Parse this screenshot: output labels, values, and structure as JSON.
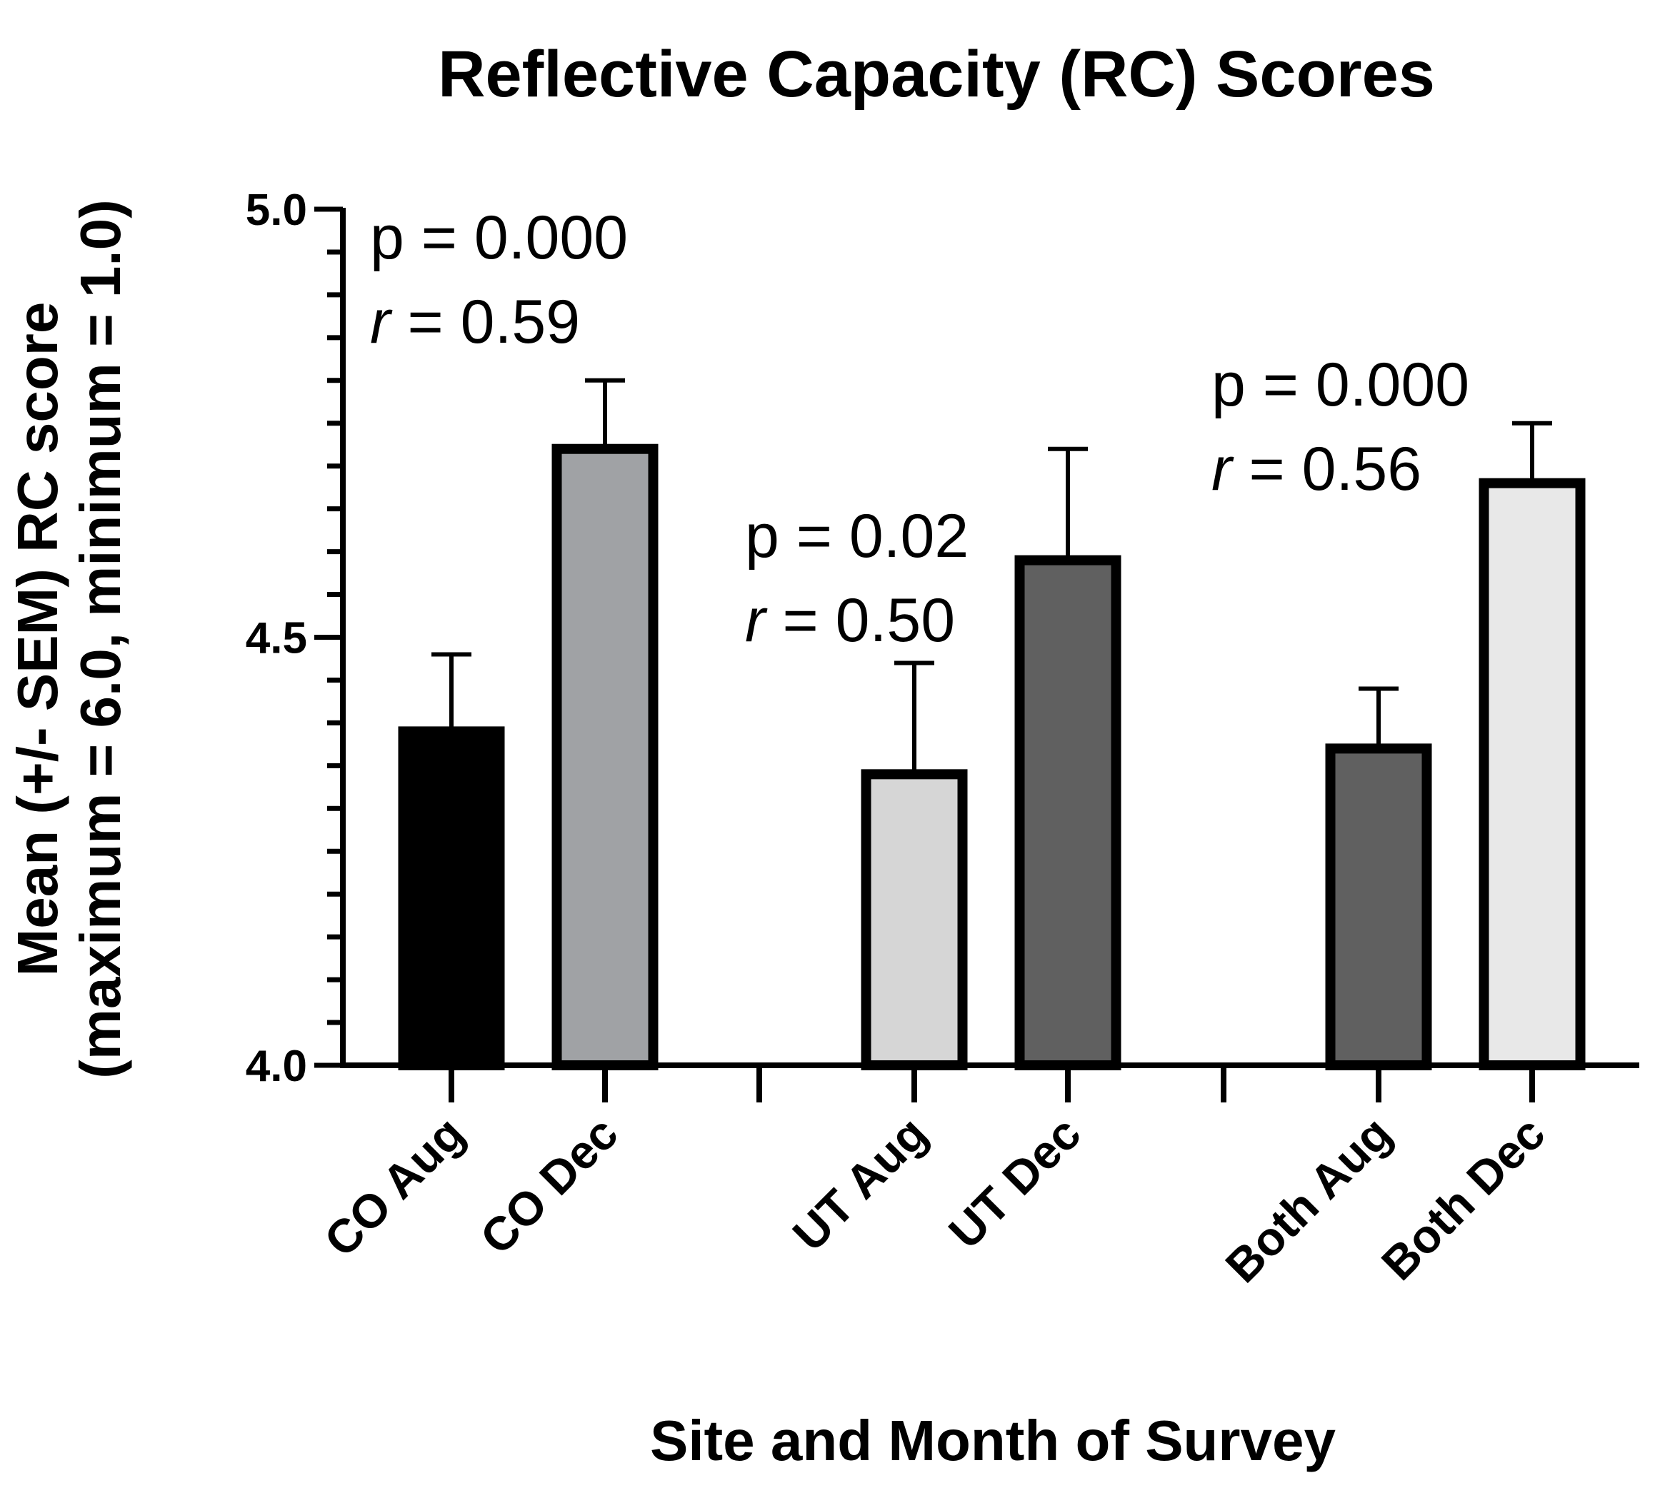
{
  "chart_data": {
    "type": "bar",
    "title": "Reflective Capacity (RC) Scores",
    "xlabel": "Site and Month of Survey",
    "ylabel_line1": "Mean (+/- SEM) RC score",
    "ylabel_line2": "(maximum = 6.0, minimum = 1.0)",
    "ylim": [
      4.0,
      5.0
    ],
    "yticks": [
      "4.0",
      "4.5",
      "5.0"
    ],
    "ytick_values": [
      4.0,
      4.5,
      5.0
    ],
    "minor_tick_step": 0.05,
    "error_bars": "SEM (upper)",
    "bars": [
      {
        "category": "CO Aug",
        "value": 4.39,
        "sem": 0.09,
        "color": "#000000"
      },
      {
        "category": "CO Dec",
        "value": 4.72,
        "sem": 0.08,
        "color": "#a0a2a5"
      },
      {
        "category": "UT Aug",
        "value": 4.34,
        "sem": 0.13,
        "color": "#d6d6d6"
      },
      {
        "category": "UT Dec",
        "value": 4.59,
        "sem": 0.13,
        "color": "#606060"
      },
      {
        "category": "Both Aug",
        "value": 4.37,
        "sem": 0.07,
        "color": "#606060"
      },
      {
        "category": "Both Dec",
        "value": 4.68,
        "sem": 0.07,
        "color": "#e8e8e8"
      }
    ],
    "annotations": [
      {
        "group": "CO",
        "p_text": "p = 0.000",
        "r_label": "r",
        "r_text": " = 0.59"
      },
      {
        "group": "UT",
        "p_text": "p = 0.02",
        "r_label": "r",
        "r_text": " = 0.50"
      },
      {
        "group": "Both",
        "p_text": "p = 0.000",
        "r_label": "r",
        "r_text": " = 0.56"
      }
    ]
  }
}
